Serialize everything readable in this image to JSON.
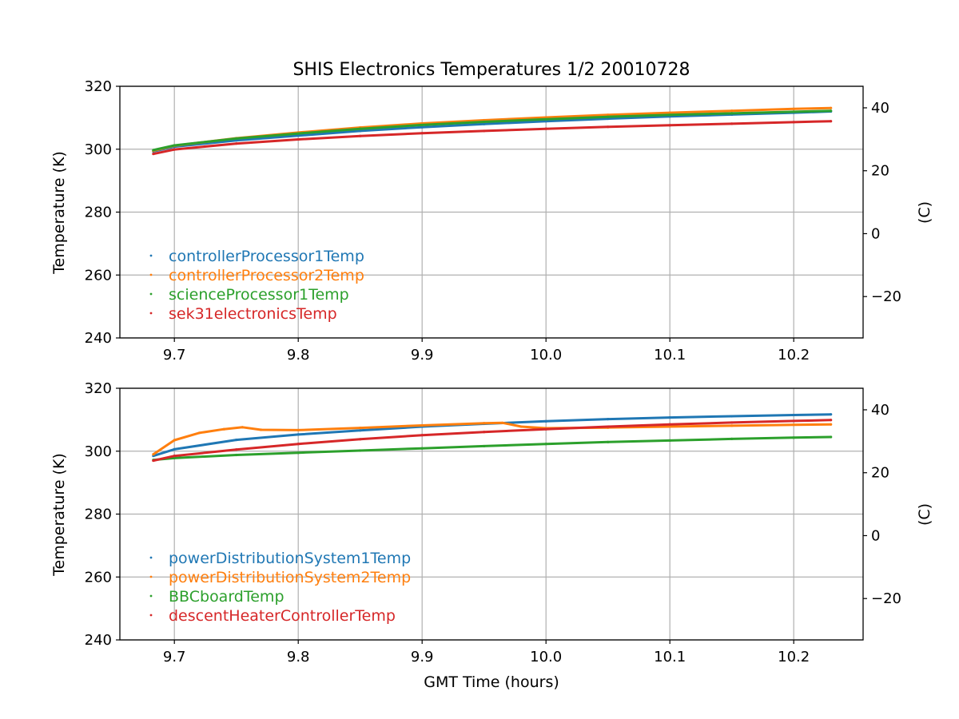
{
  "figure": {
    "title": "SHIS Electronics Temperatures 1/2 20010728"
  },
  "colors": {
    "blue": "#1f77b4",
    "orange": "#ff7f0e",
    "green": "#2ca02c",
    "red": "#d62728",
    "grid": "#b0b0b0",
    "axis": "#000000"
  },
  "chart_data": [
    {
      "type": "scatter",
      "title": "SHIS Electronics Temperatures 1/2 20010728",
      "xlabel": "",
      "ylabel": "Temperature (K)",
      "ylabel_right": "(C)",
      "xlim": [
        9.656,
        10.256
      ],
      "ylim": [
        240,
        320
      ],
      "ylim_right": [
        -33.15,
        46.85
      ],
      "x_ticks": [
        9.7,
        9.8,
        9.9,
        10.0,
        10.1,
        10.2
      ],
      "x_tick_labels": [
        "9.7",
        "9.8",
        "9.9",
        "10.0",
        "10.1",
        "10.2"
      ],
      "y_ticks": [
        240,
        260,
        280,
        300,
        320
      ],
      "y_tick_labels": [
        "240",
        "260",
        "280",
        "300",
        "320"
      ],
      "y_right_ticks": [
        -20,
        0,
        20,
        40
      ],
      "y_right_tick_labels": [
        "−20",
        "0",
        "20",
        "40"
      ],
      "grid": true,
      "legend_position": "lower-left",
      "series": [
        {
          "name": "controllerProcessor1Temp",
          "color": "#1f77b4",
          "x": [
            9.683,
            9.7,
            9.75,
            9.8,
            9.85,
            9.9,
            9.95,
            10.0,
            10.05,
            10.1,
            10.15,
            10.2,
            10.23
          ],
          "y": [
            299.3,
            300.8,
            302.8,
            304.3,
            305.8,
            307.0,
            308.0,
            308.9,
            309.7,
            310.4,
            311.0,
            311.6,
            312.0
          ]
        },
        {
          "name": "controllerProcessor2Temp",
          "color": "#ff7f0e",
          "x": [
            9.683,
            9.7,
            9.75,
            9.8,
            9.85,
            9.9,
            9.95,
            10.0,
            10.05,
            10.1,
            10.15,
            10.2,
            10.23
          ],
          "y": [
            299.5,
            301.1,
            303.5,
            305.3,
            306.9,
            308.2,
            309.2,
            310.1,
            310.9,
            311.6,
            312.2,
            312.8,
            313.1
          ]
        },
        {
          "name": "scienceProcessor1Temp",
          "color": "#2ca02c",
          "x": [
            9.683,
            9.7,
            9.75,
            9.8,
            9.85,
            9.9,
            9.95,
            10.0,
            10.05,
            10.1,
            10.15,
            10.2,
            10.23
          ],
          "y": [
            299.7,
            301.2,
            303.4,
            305.0,
            306.5,
            307.7,
            308.7,
            309.5,
            310.3,
            310.9,
            311.4,
            311.9,
            312.2
          ]
        },
        {
          "name": "sek31electronicsTemp",
          "color": "#d62728",
          "x": [
            9.683,
            9.7,
            9.75,
            9.8,
            9.85,
            9.9,
            9.95,
            10.0,
            10.05,
            10.1,
            10.15,
            10.2,
            10.23
          ],
          "y": [
            298.5,
            299.9,
            301.8,
            303.1,
            304.2,
            305.1,
            305.8,
            306.5,
            307.1,
            307.6,
            308.1,
            308.6,
            308.9
          ]
        }
      ]
    },
    {
      "type": "scatter",
      "title": "",
      "xlabel": "GMT Time (hours)",
      "ylabel": "Temperature (K)",
      "ylabel_right": "(C)",
      "xlim": [
        9.656,
        10.256
      ],
      "ylim": [
        240,
        320
      ],
      "ylim_right": [
        -33.15,
        46.85
      ],
      "x_ticks": [
        9.7,
        9.8,
        9.9,
        10.0,
        10.1,
        10.2
      ],
      "x_tick_labels": [
        "9.7",
        "9.8",
        "9.9",
        "10.0",
        "10.1",
        "10.2"
      ],
      "y_ticks": [
        240,
        260,
        280,
        300,
        320
      ],
      "y_tick_labels": [
        "240",
        "260",
        "280",
        "300",
        "320"
      ],
      "y_right_ticks": [
        -20,
        0,
        20,
        40
      ],
      "y_right_tick_labels": [
        "−20",
        "0",
        "20",
        "40"
      ],
      "grid": true,
      "legend_position": "lower-left",
      "series": [
        {
          "name": "powerDistributionSystem1Temp",
          "color": "#1f77b4",
          "x": [
            9.683,
            9.7,
            9.75,
            9.8,
            9.85,
            9.9,
            9.95,
            10.0,
            10.05,
            10.1,
            10.15,
            10.2,
            10.23
          ],
          "y": [
            298.5,
            300.6,
            303.6,
            305.3,
            306.6,
            307.8,
            308.7,
            309.5,
            310.2,
            310.7,
            311.1,
            311.5,
            311.7
          ]
        },
        {
          "name": "powerDistributionSystem2Temp",
          "color": "#ff7f0e",
          "x": [
            9.683,
            9.7,
            9.72,
            9.74,
            9.755,
            9.77,
            9.8,
            9.85,
            9.9,
            9.95,
            9.965,
            9.98,
            10.0,
            10.05,
            10.1,
            10.15,
            10.2,
            10.23
          ],
          "y": [
            299.0,
            303.5,
            305.8,
            307.0,
            307.6,
            306.8,
            306.7,
            307.4,
            308.2,
            308.9,
            309.0,
            307.8,
            307.3,
            307.5,
            307.8,
            308.1,
            308.4,
            308.5
          ]
        },
        {
          "name": "BBCboardTemp",
          "color": "#2ca02c",
          "x": [
            9.683,
            9.7,
            9.75,
            9.8,
            9.85,
            9.9,
            9.95,
            10.0,
            10.05,
            10.1,
            10.15,
            10.2,
            10.23
          ],
          "y": [
            297.2,
            297.8,
            298.8,
            299.5,
            300.2,
            300.9,
            301.6,
            302.3,
            302.9,
            303.4,
            303.9,
            304.3,
            304.5
          ]
        },
        {
          "name": "descentHeaterControllerTemp",
          "color": "#d62728",
          "x": [
            9.683,
            9.7,
            9.75,
            9.8,
            9.85,
            9.9,
            9.95,
            10.0,
            10.05,
            10.1,
            10.15,
            10.2,
            10.23
          ],
          "y": [
            297.0,
            298.5,
            300.5,
            302.3,
            303.8,
            305.1,
            306.1,
            307.0,
            307.8,
            308.5,
            309.1,
            309.6,
            309.9
          ]
        }
      ]
    }
  ]
}
